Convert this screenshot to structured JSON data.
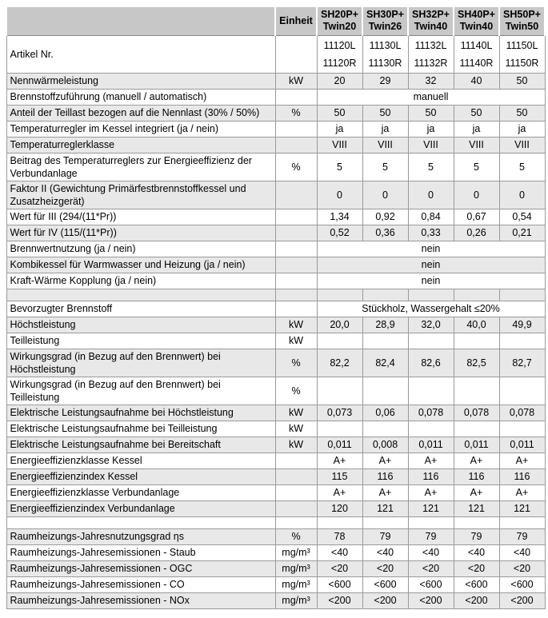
{
  "colors": {
    "header_bg": "#c7c7c7",
    "row_alt_bg": "#e8e8e8",
    "border": "#9a9a9a"
  },
  "table": {
    "unit_header": "Einheit",
    "models": [
      {
        "name": "SH20P+",
        "variant": "Twin20"
      },
      {
        "name": "SH30P+",
        "variant": "Twin26"
      },
      {
        "name": "SH32P+",
        "variant": "Twin40"
      },
      {
        "name": "SH40P+",
        "variant": "Twin40"
      },
      {
        "name": "SH50P+",
        "variant": "Twin50"
      }
    ],
    "rows": [
      {
        "label": "Artikel Nr.",
        "unit": "",
        "tall": true,
        "bg": "white",
        "values": [
          [
            "11120L",
            "11120R"
          ],
          [
            "11130L",
            "11130R"
          ],
          [
            "11132L",
            "11132R"
          ],
          [
            "11140L",
            "11140R"
          ],
          [
            "11150L",
            "11150R"
          ]
        ]
      },
      {
        "label": "Nennwärmeleistung",
        "unit": "kW",
        "bg": "gray",
        "values": [
          "20",
          "29",
          "32",
          "40",
          "50"
        ]
      },
      {
        "label": "Brennstoffzuführung (manuell / automatisch)",
        "unit": "",
        "bg": "white",
        "span": "manuell"
      },
      {
        "label": "Anteil der Teillast bezogen auf die Nennlast (30% / 50%)",
        "unit": "%",
        "bg": "gray",
        "values": [
          "50",
          "50",
          "50",
          "50",
          "50"
        ]
      },
      {
        "label": "Temperaturregler im Kessel integriert (ja / nein)",
        "unit": "",
        "bg": "white",
        "values": [
          "ja",
          "ja",
          "ja",
          "ja",
          "ja"
        ]
      },
      {
        "label": "Temperaturreglerklasse",
        "unit": "",
        "bg": "gray",
        "values": [
          "VIII",
          "VIII",
          "VIII",
          "VIII",
          "VIII"
        ]
      },
      {
        "label": "Beitrag des Temperaturreglers zur Energieeffizienz der Verbundanlage",
        "unit": "%",
        "bg": "white",
        "values": [
          "5",
          "5",
          "5",
          "5",
          "5"
        ]
      },
      {
        "label": "Faktor II (Gewichtung Primärfestbrennstoffkessel und Zusatzheizgerät)",
        "unit": "",
        "bg": "gray",
        "values": [
          "0",
          "0",
          "0",
          "0",
          "0"
        ]
      },
      {
        "label": "Wert für III (294/(11*Pr))",
        "unit": "",
        "bg": "white",
        "values": [
          "1,34",
          "0,92",
          "0,84",
          "0,67",
          "0,54"
        ]
      },
      {
        "label": "Wert für IV (115/(11*Pr))",
        "unit": "",
        "bg": "gray",
        "values": [
          "0,52",
          "0,36",
          "0,33",
          "0,26",
          "0,21"
        ]
      },
      {
        "label": "Brennwertnutzung (ja / nein)",
        "unit": "",
        "bg": "white",
        "span": "nein"
      },
      {
        "label": "Kombikessel für Warmwasser und Heizung (ja / nein)",
        "unit": "",
        "bg": "gray",
        "span": "nein"
      },
      {
        "label": "Kraft-Wärme Kopplung (ja / nein)",
        "unit": "",
        "bg": "white",
        "span": "nein"
      },
      {
        "spacer": true,
        "bg": "gray"
      },
      {
        "label": "Bevorzugter Brennstoff",
        "unit": "",
        "bg": "white",
        "span": "Stückholz, Wassergehalt ≤20%"
      },
      {
        "label": "Höchstleistung",
        "unit": "kW",
        "bg": "gray",
        "values": [
          "20,0",
          "28,9",
          "32,0",
          "40,0",
          "49,9"
        ]
      },
      {
        "label": "Teilleistung",
        "unit": "kW",
        "bg": "white",
        "values": [
          "",
          "",
          "",
          "",
          ""
        ]
      },
      {
        "label": "Wirkungsgrad (in Bezug auf den Brennwert) bei Höchstleistung",
        "unit": "%",
        "bg": "gray",
        "values": [
          "82,2",
          "82,4",
          "82,6",
          "82,5",
          "82,7"
        ]
      },
      {
        "label": "Wirkungsgrad (in Bezug auf den Brennwert) bei Teilleistung",
        "unit": "%",
        "bg": "white",
        "values": [
          "",
          "",
          "",
          "",
          ""
        ]
      },
      {
        "label": "Elektrische Leistungsaufnahme bei Höchstleistung",
        "unit": "kW",
        "bg": "gray",
        "values": [
          "0,073",
          "0,06",
          "0,078",
          "0,078",
          "0,078"
        ]
      },
      {
        "label": "Elektrische Leistungsaufnahme bei Teilleistung",
        "unit": "kW",
        "bg": "white",
        "values": [
          "",
          "",
          "",
          "",
          ""
        ]
      },
      {
        "label": "Elektrische Leistungsaufnahme bei Bereitschaft",
        "unit": "kW",
        "bg": "gray",
        "values": [
          "0,011",
          "0,008",
          "0,011",
          "0,011",
          "0,011"
        ]
      },
      {
        "label": "Energieeffizienzklasse Kessel",
        "unit": "",
        "bg": "white",
        "values": [
          "A+",
          "A+",
          "A+",
          "A+",
          "A+"
        ]
      },
      {
        "label": "Energieeffizienzindex Kessel",
        "unit": "",
        "bg": "gray",
        "values": [
          "115",
          "116",
          "116",
          "116",
          "116"
        ]
      },
      {
        "label": "Energieeffizienzklasse Verbundanlage",
        "unit": "",
        "bg": "white",
        "values": [
          "A+",
          "A+",
          "A+",
          "A+",
          "A+"
        ]
      },
      {
        "label": "Energieeffizienzindex Verbundanlage",
        "unit": "",
        "bg": "gray",
        "values": [
          "120",
          "121",
          "121",
          "121",
          "121"
        ]
      },
      {
        "spacer": true,
        "bg": "white"
      },
      {
        "label": "Raumheizungs-Jahresnutzungsgrad ηs",
        "unit": "%",
        "bg": "gray",
        "values": [
          "78",
          "79",
          "79",
          "79",
          "79"
        ]
      },
      {
        "label": "Raumheizungs-Jahresemissionen - Staub",
        "unit": "mg/m³",
        "bg": "white",
        "values": [
          "<40",
          "<40",
          "<40",
          "<40",
          "<40"
        ]
      },
      {
        "label": "Raumheizungs-Jahresemissionen - OGC",
        "unit": "mg/m³",
        "bg": "gray",
        "values": [
          "<20",
          "<20",
          "<20",
          "<20",
          "<20"
        ]
      },
      {
        "label": "Raumheizungs-Jahresemissionen - CO",
        "unit": "mg/m³",
        "bg": "white",
        "values": [
          "<600",
          "<600",
          "<600",
          "<600",
          "<600"
        ]
      },
      {
        "label": "Raumheizungs-Jahresemissionen - NOx",
        "unit": "mg/m³",
        "bg": "gray",
        "values": [
          "<200",
          "<200",
          "<200",
          "<200",
          "<200"
        ]
      }
    ]
  }
}
